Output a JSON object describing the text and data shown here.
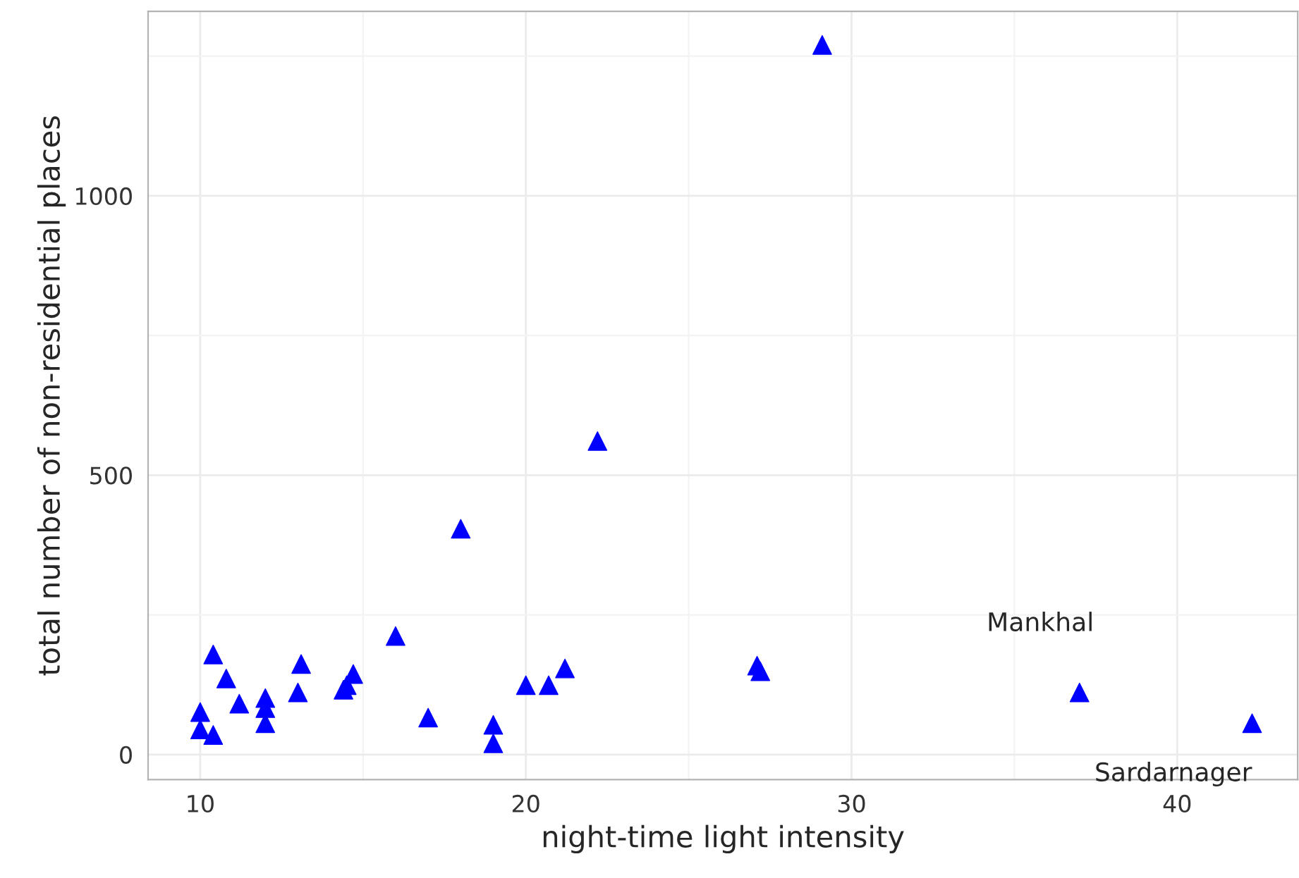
{
  "chart_data": {
    "type": "scatter",
    "xlabel": "night-time light intensity",
    "ylabel": "total number of non-residential places",
    "x": [
      10.0,
      10.0,
      10.4,
      10.4,
      10.8,
      11.2,
      12.0,
      12.0,
      12.0,
      13.1,
      13.0,
      14.4,
      14.7,
      14.5,
      16.0,
      17.0,
      18.0,
      19.0,
      19.0,
      20.0,
      20.7,
      21.2,
      22.2,
      27.1,
      27.2,
      29.1,
      37.0,
      42.3
    ],
    "series": [
      {
        "color": "#0000ff",
        "values": [
          76,
          45,
          179,
          35,
          136,
          91,
          83,
          101,
          56,
          162,
          111,
          116,
          144,
          124,
          212,
          66,
          404,
          53,
          20,
          124,
          124,
          154,
          561,
          159,
          149,
          1270,
          111,
          56
        ]
      }
    ],
    "xlim": [
      8.4,
      43.7
    ],
    "ylim": [
      -45,
      1330
    ],
    "xticks": [
      10,
      20,
      30,
      40
    ],
    "yticks": [
      0,
      500,
      1000
    ],
    "grid": true,
    "marker": "triangle",
    "annotations": [
      {
        "text": "Mankhal",
        "x": 37.0,
        "y": 111
      },
      {
        "text": "Sardarnager",
        "x": 42.3,
        "y": 56
      }
    ]
  }
}
